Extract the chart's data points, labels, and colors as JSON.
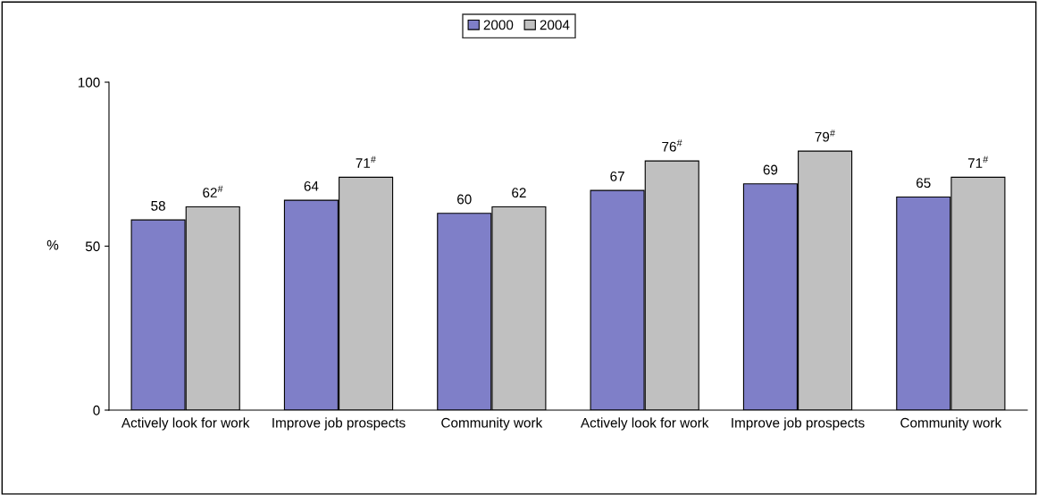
{
  "chart_data": {
    "type": "bar",
    "ylabel": "%",
    "categories": [
      "Actively look for work",
      "Improve job prospects",
      "Community work",
      "Actively look for work",
      "Improve job prospects",
      "Community work"
    ],
    "series": [
      {
        "name": "2000",
        "color": "#7f7fc8",
        "values": [
          58,
          64,
          60,
          67,
          69,
          65
        ],
        "value_labels": [
          "58",
          "64",
          "60",
          "67",
          "69",
          "65"
        ]
      },
      {
        "name": "2004",
        "color": "#c0c0c0",
        "values": [
          62,
          71,
          62,
          76,
          79,
          71
        ],
        "value_labels": [
          "62$^{#}$",
          "71$^{#}$",
          "62",
          "76$^{#}$",
          "79$^{#}$",
          "71$^{#}$"
        ]
      }
    ],
    "ylim": [
      0,
      100
    ],
    "yticks": [
      0,
      50,
      100
    ],
    "grid": false,
    "legend": "top"
  }
}
